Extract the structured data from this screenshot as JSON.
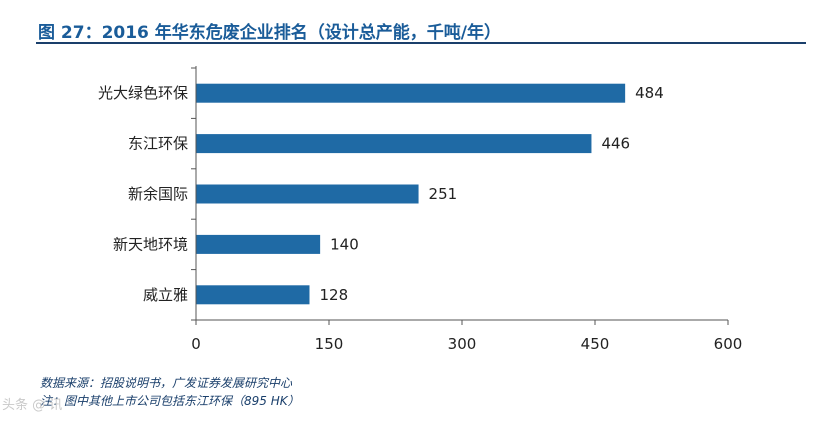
{
  "figure": {
    "title": "图 27：2016 年华东危废企业排名（设计总产能，千吨/年）",
    "source": "数据来源：招股说明书，广发证券发展研究中心",
    "note": "注：图中其他上市公司包括东江环保（895 HK）",
    "watermark": "头条 @ 讯"
  },
  "chart_data": {
    "type": "bar",
    "orientation": "horizontal",
    "categories": [
      "光大绿色环保",
      "东江环保",
      "新余国际",
      "新天地环境",
      "威立雅"
    ],
    "values": [
      484,
      446,
      251,
      140,
      128
    ],
    "xlim": [
      0,
      600
    ],
    "xticks": [
      0,
      150,
      300,
      450,
      600
    ],
    "data_labels": true,
    "grid": false,
    "legend": "none",
    "bar_color": "#1f6aa5"
  }
}
